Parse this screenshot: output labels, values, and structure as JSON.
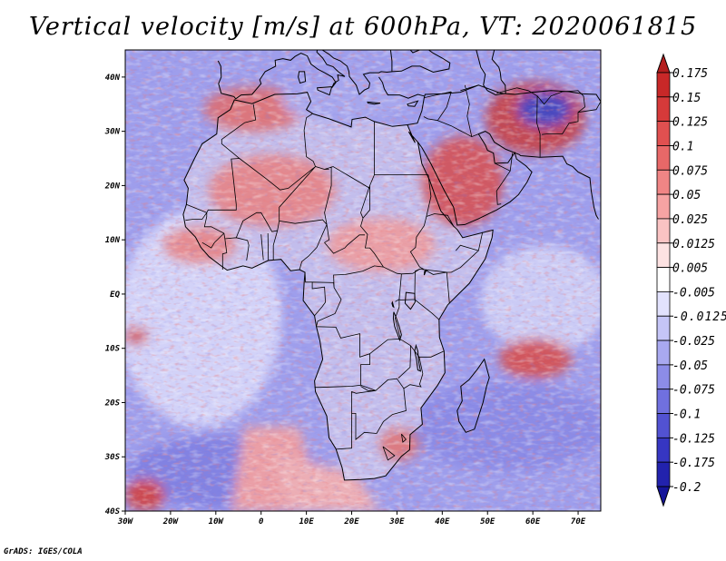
{
  "title": "Vertical velocity [m/s] at 600hPa, VT: 2020061815",
  "footer": "GrADS: IGES/COLA",
  "map": {
    "lat_labels": [
      "40N",
      "30N",
      "20N",
      "10N",
      "EQ",
      "10S",
      "20S",
      "30S",
      "40S"
    ],
    "lon_labels": [
      "30W",
      "20W",
      "10W",
      "0",
      "10E",
      "20E",
      "30E",
      "40E",
      "50E",
      "60E",
      "70E"
    ],
    "extent": {
      "lon_min": -30,
      "lon_max": 75,
      "lat_min": -40,
      "lat_max": 45
    }
  },
  "colorbar": {
    "labels": [
      "0.175",
      "0.15",
      "0.125",
      "0.1",
      "0.075",
      "0.05",
      "0.025",
      "0.0125",
      "0.005",
      "-0.005",
      "-0.0125",
      "-0.025",
      "-0.05",
      "-0.075",
      "-0.1",
      "-0.125",
      "-0.175",
      "-0.2"
    ],
    "colors": [
      "#b41e1e",
      "#c82828",
      "#d63a3a",
      "#e05050",
      "#e86868",
      "#f08585",
      "#f6a3a3",
      "#fac3c3",
      "#fde2e2",
      "#ffffff",
      "#e2e2fd",
      "#c5c5f7",
      "#a9a9f0",
      "#8c8ce8",
      "#7070df",
      "#5252d2",
      "#3636c2",
      "#2222ad",
      "#15159a"
    ]
  },
  "colors": {
    "background": "#ffffff",
    "ocean_base": "#9e9eec",
    "land_base": "#c4c0ea",
    "coast": "#000000"
  }
}
